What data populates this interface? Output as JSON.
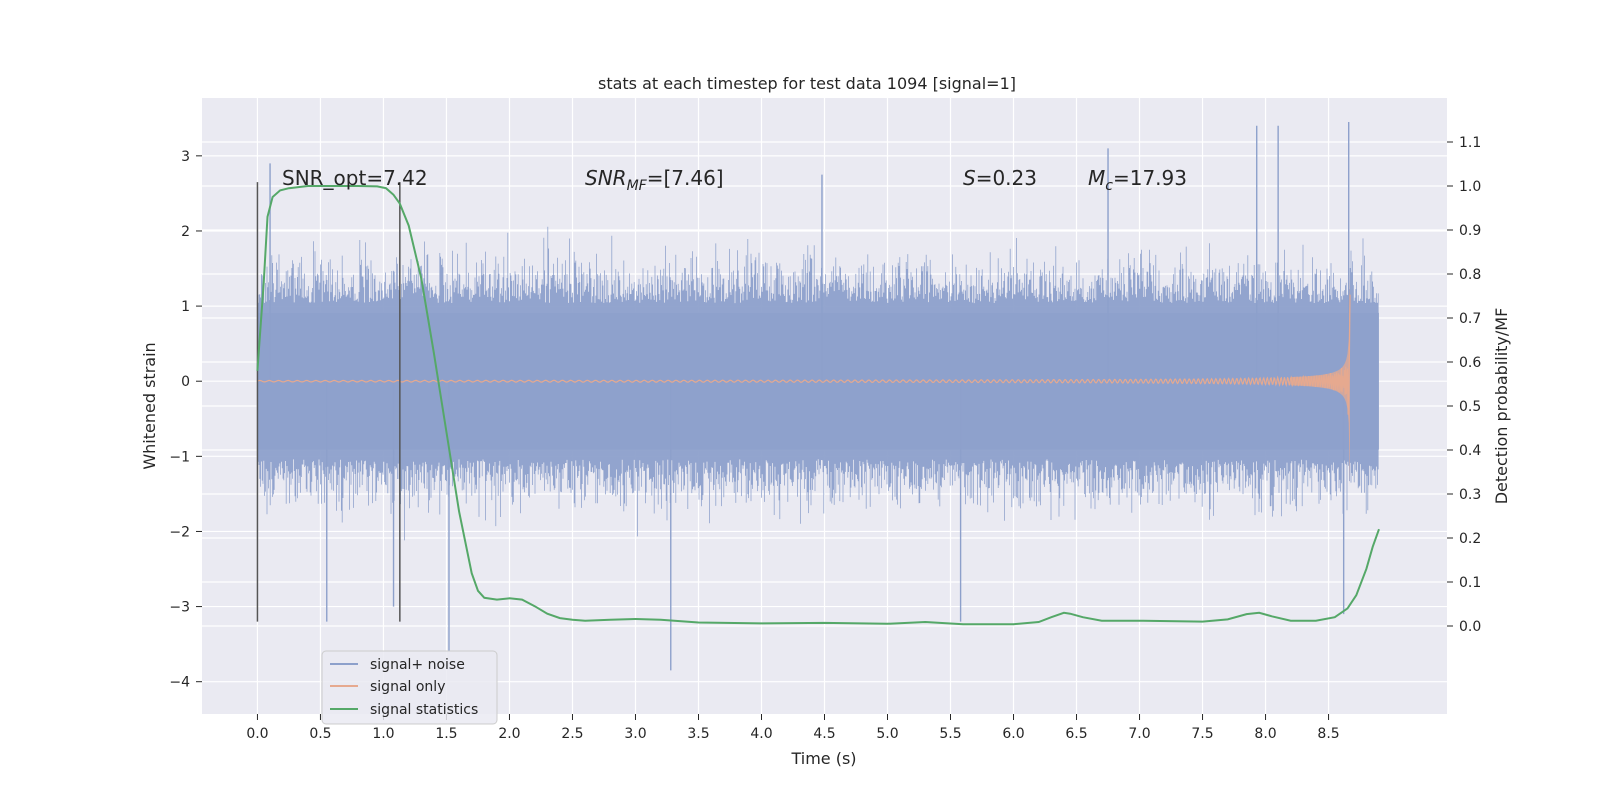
{
  "chart_data": {
    "type": "line",
    "title": "stats at each timestep for test data 1094 [signal=1]",
    "xlabel": "Time (s)",
    "ylabel": "Whitened strain",
    "ylabel_right": "Detection probability/MF",
    "xlim": [
      -0.44,
      9.44
    ],
    "ylim": [
      -4.43,
      3.77
    ],
    "ylim_right": [
      -0.2,
      1.2
    ],
    "x_ticks": [
      0.0,
      0.5,
      1.0,
      1.5,
      2.0,
      2.5,
      3.0,
      3.5,
      4.0,
      4.5,
      5.0,
      5.5,
      6.0,
      6.5,
      7.0,
      7.5,
      8.0,
      8.5
    ],
    "x_tick_labels": [
      "0.0",
      "0.5",
      "1.0",
      "1.5",
      "2.0",
      "2.5",
      "3.0",
      "3.5",
      "4.0",
      "4.5",
      "5.0",
      "5.5",
      "6.0",
      "6.5",
      "7.0",
      "7.5",
      "8.0",
      "8.5"
    ],
    "y_ticks": [
      -4,
      -3,
      -2,
      -1,
      0,
      1,
      2,
      3
    ],
    "y_tick_labels": [
      "−4",
      "−3",
      "−2",
      "−1",
      "0",
      "1",
      "2",
      "3"
    ],
    "y_right_ticks": [
      0.0,
      0.1,
      0.2,
      0.3,
      0.4,
      0.5,
      0.6,
      0.7,
      0.8,
      0.9,
      1.0,
      1.1
    ],
    "y_right_tick_labels": [
      "0.0",
      "0.1",
      "0.2",
      "0.3",
      "0.4",
      "0.5",
      "0.6",
      "0.7",
      "0.8",
      "0.9",
      "1.0",
      "1.1"
    ],
    "grid": true,
    "legend_position": "lower-left",
    "annotations": {
      "snr_opt": "SNR_opt=7.42",
      "snr_mf_prefix": "SNR",
      "snr_mf_sub": "MF",
      "snr_mf_value": "=[7.46]",
      "s_prefix": "S",
      "s_value": "=0.23",
      "mc_prefix": "M",
      "mc_sub": "c",
      "mc_value": "=17.93"
    },
    "vertical_markers": [
      {
        "x": 0.0,
        "y_range": [
          -3.2,
          2.65
        ]
      },
      {
        "x": 1.13,
        "y_range": [
          -3.2,
          2.65
        ]
      }
    ],
    "series": [
      {
        "name": "signal+ noise",
        "color": "#8da0cb",
        "kind": "noise",
        "x_range": [
          0.0,
          8.9
        ],
        "typical_amplitude": 1.3,
        "spikes": [
          {
            "x": 0.1,
            "y": 2.9
          },
          {
            "x": 0.55,
            "y": -3.2
          },
          {
            "x": 1.52,
            "y": -3.6
          },
          {
            "x": 3.28,
            "y": -3.85
          },
          {
            "x": 4.48,
            "y": 2.75
          },
          {
            "x": 5.58,
            "y": -3.2
          },
          {
            "x": 6.75,
            "y": 3.1
          },
          {
            "x": 7.93,
            "y": 3.4
          },
          {
            "x": 8.1,
            "y": 3.4
          },
          {
            "x": 8.66,
            "y": 3.45
          },
          {
            "x": 8.62,
            "y": -3.1
          },
          {
            "x": 1.08,
            "y": -3.0
          }
        ]
      },
      {
        "name": "signal only",
        "color": "#e6a98f",
        "kind": "chirp",
        "x_range": [
          0.0,
          8.67
        ],
        "peak_x": 8.67,
        "peak_amplitude": 1.4
      },
      {
        "name": "signal statistics",
        "color": "#55a868",
        "axis": "right",
        "x": [
          0.0,
          0.05,
          0.08,
          0.12,
          0.18,
          0.25,
          0.4,
          0.6,
          0.8,
          0.95,
          1.02,
          1.08,
          1.13,
          1.2,
          1.3,
          1.4,
          1.5,
          1.6,
          1.7,
          1.75,
          1.8,
          1.9,
          2.0,
          2.1,
          2.2,
          2.3,
          2.4,
          2.5,
          2.6,
          2.8,
          3.0,
          3.2,
          3.5,
          4.0,
          4.5,
          5.0,
          5.3,
          5.6,
          6.0,
          6.2,
          6.3,
          6.4,
          6.45,
          6.55,
          6.7,
          7.0,
          7.5,
          7.7,
          7.85,
          7.95,
          8.05,
          8.2,
          8.4,
          8.55,
          8.65,
          8.72,
          8.8,
          8.85,
          8.9
        ],
        "values": [
          0.58,
          0.78,
          0.93,
          0.975,
          0.99,
          0.995,
          1.0,
          1.0,
          1.0,
          0.999,
          0.995,
          0.98,
          0.96,
          0.91,
          0.79,
          0.62,
          0.44,
          0.26,
          0.12,
          0.08,
          0.064,
          0.06,
          0.063,
          0.06,
          0.045,
          0.028,
          0.018,
          0.014,
          0.012,
          0.014,
          0.016,
          0.014,
          0.008,
          0.006,
          0.007,
          0.005,
          0.009,
          0.004,
          0.004,
          0.009,
          0.02,
          0.03,
          0.028,
          0.02,
          0.012,
          0.012,
          0.01,
          0.015,
          0.027,
          0.03,
          0.022,
          0.012,
          0.012,
          0.02,
          0.04,
          0.07,
          0.13,
          0.18,
          0.22
        ]
      }
    ]
  }
}
